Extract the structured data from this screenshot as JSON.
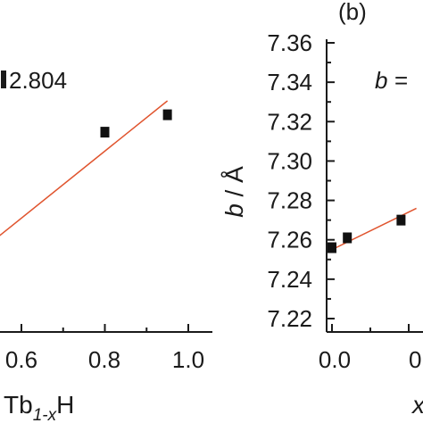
{
  "chart_data": [
    {
      "type": "scatter",
      "xticks": [
        "0.6",
        "0.8",
        "1.0"
      ],
      "xlim": [
        0.5,
        1.1
      ],
      "ylim": [
        -14,
        5
      ],
      "fit_label": "2.804",
      "xlabel": {
        "base": "Tb",
        "sub": "1-x",
        "tail": "H"
      },
      "series": [
        {
          "x": [
            0.8,
            0.95
          ],
          "y": [
            -1.35,
            -0.6
          ]
        }
      ],
      "fit_line": {
        "x": [
          0.5,
          0.95
        ],
        "y": [
          -6.5,
          0.0
        ],
        "color": "#e0542e"
      }
    },
    {
      "type": "scatter",
      "panel_label": "(b)",
      "ylabel": "b / Å",
      "fit_label": "b =",
      "yticks": [
        "7.36",
        "7.34",
        "7.32",
        "7.30",
        "7.28",
        "7.26",
        "7.24",
        "7.22"
      ],
      "ylim": [
        7.215,
        7.365
      ],
      "xticks": [
        "0.0",
        "0."
      ],
      "xlim": [
        -0.02,
        0.25
      ],
      "xlabel": "x",
      "series": [
        {
          "x": [
            0.0,
            0.04,
            0.18
          ],
          "y": [
            7.256,
            7.261,
            7.27
          ]
        }
      ],
      "fit_line": {
        "x": [
          0.0,
          0.22
        ],
        "y": [
          7.255,
          7.276
        ],
        "color": "#e0542e"
      }
    }
  ]
}
